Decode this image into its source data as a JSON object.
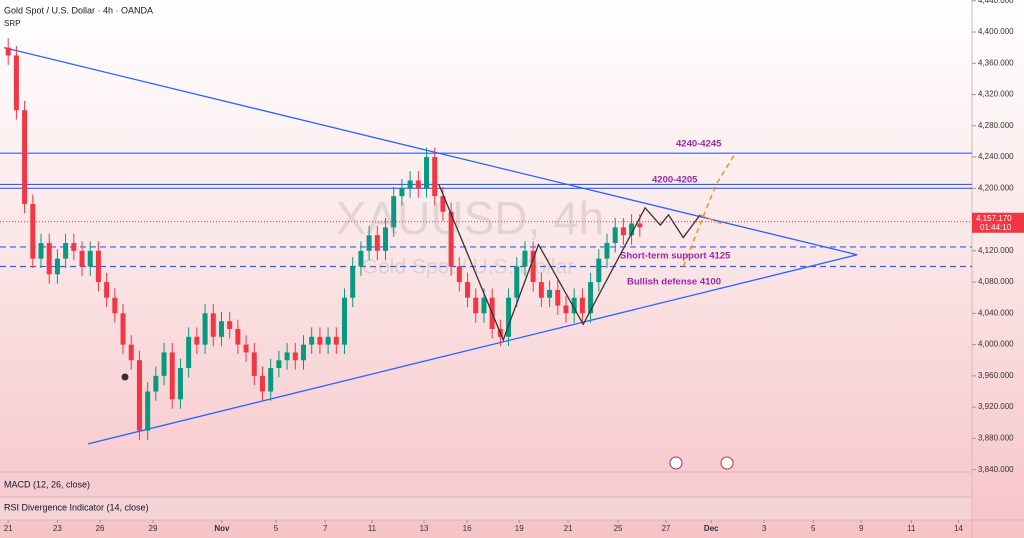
{
  "chart_data": {
    "type": "candlestick",
    "title": "Gold Spot / U.S. Dollar · 4h · OANDA",
    "subtitle": "SRP",
    "watermark": "XAUUSD, 4h",
    "watermark_sub": "Gold Spot / U.S. Dollar",
    "xlim": [
      -2,
      235
    ],
    "ylim": [
      3837,
      4441
    ],
    "xticks": [
      {
        "value": 0,
        "label": "21"
      },
      {
        "value": 12,
        "label": "23"
      },
      {
        "value": 22.4,
        "label": "26"
      },
      {
        "value": 35.3,
        "label": "29"
      },
      {
        "value": 52.1,
        "label": "Nov"
      },
      {
        "value": 65.3,
        "label": "5"
      },
      {
        "value": 77.3,
        "label": "7"
      },
      {
        "value": 88.7,
        "label": "11"
      },
      {
        "value": 101.4,
        "label": "13"
      },
      {
        "value": 111.9,
        "label": "16"
      },
      {
        "value": 124.6,
        "label": "19"
      },
      {
        "value": 136.5,
        "label": "21"
      },
      {
        "value": 148.7,
        "label": "25"
      },
      {
        "value": 160.4,
        "label": "27"
      },
      {
        "value": 171.4,
        "label": "Dec"
      },
      {
        "value": 184.3,
        "label": "3"
      },
      {
        "value": 196.3,
        "label": "5"
      },
      {
        "value": 208,
        "label": "9"
      },
      {
        "value": 220.2,
        "label": "11"
      },
      {
        "value": 231.7,
        "label": "14"
      }
    ],
    "yticks": [
      {
        "value": 3840,
        "label": "3,840.000"
      },
      {
        "value": 3880,
        "label": "3,880.000"
      },
      {
        "value": 3920,
        "label": "3,920.000"
      },
      {
        "value": 3960,
        "label": "3,960.000"
      },
      {
        "value": 4000,
        "label": "4,000.000"
      },
      {
        "value": 4040,
        "label": "4,040.000"
      },
      {
        "value": 4080,
        "label": "4,080.000"
      },
      {
        "value": 4120,
        "label": "4,120.000"
      },
      {
        "value": 4160,
        "label": "4,160.000"
      },
      {
        "value": 4200,
        "label": "4,200.000"
      },
      {
        "value": 4240,
        "label": "4,240.000"
      },
      {
        "value": 4280,
        "label": "4,280.000"
      },
      {
        "value": 4320,
        "label": "4,320.000"
      },
      {
        "value": 4360,
        "label": "4,360.000"
      },
      {
        "value": 4400,
        "label": "4,400.000"
      },
      {
        "value": 4440,
        "label": "4,440.000"
      }
    ],
    "up_color": "#089981",
    "down_color": "#f23645",
    "x": [
      0,
      2,
      4,
      6,
      8,
      10,
      12,
      14,
      16,
      18,
      20,
      22,
      24,
      26,
      28,
      30,
      32,
      34,
      36,
      38,
      40,
      42,
      44,
      46,
      48,
      50,
      52,
      54,
      56,
      58,
      60,
      62,
      64,
      66,
      68,
      70,
      72,
      74,
      76,
      78,
      80,
      82,
      84,
      86,
      88,
      90,
      92,
      94,
      96,
      98,
      100,
      102,
      104,
      106,
      108,
      110,
      112,
      114,
      116,
      118,
      120,
      122,
      124,
      126,
      128,
      130,
      132,
      134,
      136,
      138,
      140,
      142,
      144,
      146,
      148,
      150,
      152,
      154
    ],
    "open": [
      4380,
      4370,
      4300,
      4180,
      4110,
      4130,
      4090,
      4110,
      4130,
      4120,
      4100,
      4120,
      4080,
      4060,
      4040,
      4000,
      3980,
      3890,
      3940,
      3960,
      3990,
      3930,
      3970,
      4010,
      4000,
      4040,
      4010,
      4030,
      4020,
      4000,
      3990,
      3960,
      3940,
      3970,
      3980,
      3990,
      3980,
      4000,
      4010,
      4000,
      4010,
      4000,
      4060,
      4100,
      4120,
      4140,
      4120,
      4150,
      4190,
      4200,
      4210,
      4200,
      4240,
      4190,
      4170,
      4100,
      4080,
      4060,
      4040,
      4060,
      4020,
      4010,
      4060,
      4100,
      4120,
      4080,
      4060,
      4070,
      4050,
      4040,
      4060,
      4040,
      4080,
      4110,
      4130,
      4150,
      4140,
      4155
    ],
    "high": [
      4392,
      4382,
      4312,
      4192,
      4142,
      4142,
      4122,
      4142,
      4142,
      4132,
      4132,
      4132,
      4092,
      4072,
      4052,
      4012,
      3992,
      3952,
      3972,
      4002,
      4002,
      3982,
      4022,
      4022,
      4052,
      4052,
      4042,
      4042,
      4032,
      4012,
      4002,
      3972,
      3982,
      3992,
      4002,
      4002,
      4012,
      4022,
      4022,
      4022,
      4022,
      4072,
      4112,
      4132,
      4152,
      4152,
      4162,
      4202,
      4212,
      4222,
      4222,
      4252,
      4252,
      4202,
      4182,
      4112,
      4092,
      4072,
      4072,
      4072,
      4032,
      4072,
      4112,
      4132,
      4132,
      4092,
      4082,
      4082,
      4062,
      4072,
      4072,
      4092,
      4122,
      4142,
      4162,
      4162,
      4167,
      4167
    ],
    "low": [
      4358,
      4288,
      4168,
      4098,
      4098,
      4078,
      4078,
      4098,
      4108,
      4088,
      4088,
      4068,
      4048,
      4028,
      3988,
      3968,
      3878,
      3878,
      3928,
      3948,
      3918,
      3918,
      3958,
      3988,
      3988,
      3998,
      3998,
      4008,
      3988,
      3978,
      3948,
      3928,
      3928,
      3958,
      3968,
      3968,
      3968,
      3988,
      3988,
      3988,
      3988,
      3988,
      4048,
      4088,
      4108,
      4108,
      4108,
      4138,
      4178,
      4188,
      4188,
      4188,
      4178,
      4158,
      4088,
      4068,
      4048,
      4028,
      4028,
      4008,
      3998,
      3998,
      4048,
      4088,
      4068,
      4048,
      4048,
      4038,
      4028,
      4028,
      4028,
      4028,
      4068,
      4098,
      4118,
      4128,
      4128,
      4138
    ],
    "close": [
      4370,
      4300,
      4180,
      4110,
      4130,
      4090,
      4110,
      4130,
      4120,
      4100,
      4120,
      4080,
      4060,
      4040,
      4000,
      3980,
      3890,
      3940,
      3960,
      3990,
      3930,
      3970,
      4010,
      4000,
      4040,
      4010,
      4030,
      4020,
      4000,
      3990,
      3960,
      3940,
      3970,
      3980,
      3990,
      3980,
      4000,
      4010,
      4000,
      4010,
      4000,
      4060,
      4100,
      4120,
      4140,
      4120,
      4150,
      4190,
      4200,
      4210,
      4200,
      4240,
      4190,
      4170,
      4100,
      4080,
      4060,
      4040,
      4060,
      4020,
      4010,
      4060,
      4100,
      4120,
      4080,
      4060,
      4070,
      4050,
      4040,
      4060,
      4040,
      4080,
      4110,
      4130,
      4150,
      4140,
      4155,
      4150
    ],
    "levels": [
      4245,
      4205,
      4200
    ],
    "dashed_levels": [
      4125,
      4100
    ],
    "trendlines": [
      {
        "x": [
          -1,
          207
        ],
        "y": [
          4380,
          4115
        ]
      },
      {
        "x": [
          19.5,
          207
        ],
        "y": [
          3873,
          4115
        ]
      }
    ],
    "path_x": [
      105,
      120.7,
      129.3,
      140.2,
      155.3,
      159,
      161,
      164.6,
      168.7
    ],
    "path_y": [
      4205,
      4006,
      4128,
      4026,
      4175,
      4153,
      4166,
      4137,
      4166
    ],
    "projections": [
      {
        "x": [
          164.6,
          172.6,
          177.3
        ],
        "y": [
          4100,
          4205,
          4245
        ]
      },
      {
        "x": [
          168.7,
          174.8
        ],
        "y": [
          4166,
          4153
        ]
      }
    ],
    "last_price": {
      "value": 4157.17,
      "label": "4,157.170"
    },
    "countdown": "01:44:10",
    "annotations": [
      "4240-4245",
      "4200-4205",
      "Short-term support 4125",
      "Bullish defense 4100"
    ],
    "panes": [
      "MACD (12, 26, close)",
      "RSI Divergence Indicator (14, close)"
    ]
  }
}
